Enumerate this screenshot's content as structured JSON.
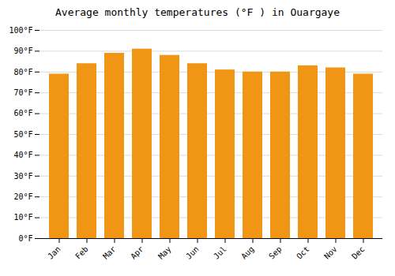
{
  "chart_data": {
    "type": "bar",
    "title": "Average monthly temperatures (°F ) in Ouargaye",
    "categories": [
      "Jan",
      "Feb",
      "Mar",
      "Apr",
      "May",
      "Jun",
      "Jul",
      "Aug",
      "Sep",
      "Oct",
      "Nov",
      "Dec"
    ],
    "values": [
      79,
      84,
      89,
      91,
      88,
      84,
      81,
      80,
      80,
      83,
      82,
      79
    ],
    "color": "#F09614",
    "ylim": [
      0,
      100
    ],
    "yticks": [
      {
        "value": 0,
        "label": "0°F"
      },
      {
        "value": 10,
        "label": "10°F"
      },
      {
        "value": 20,
        "label": "20°F"
      },
      {
        "value": 30,
        "label": "30°F"
      },
      {
        "value": 40,
        "label": "40°F"
      },
      {
        "value": 50,
        "label": "50°F"
      },
      {
        "value": 60,
        "label": "60°F"
      },
      {
        "value": 70,
        "label": "70°F"
      },
      {
        "value": 80,
        "label": "80°F"
      },
      {
        "value": 90,
        "label": "90°F"
      },
      {
        "value": 100,
        "label": "100°F"
      }
    ],
    "grid": true
  }
}
